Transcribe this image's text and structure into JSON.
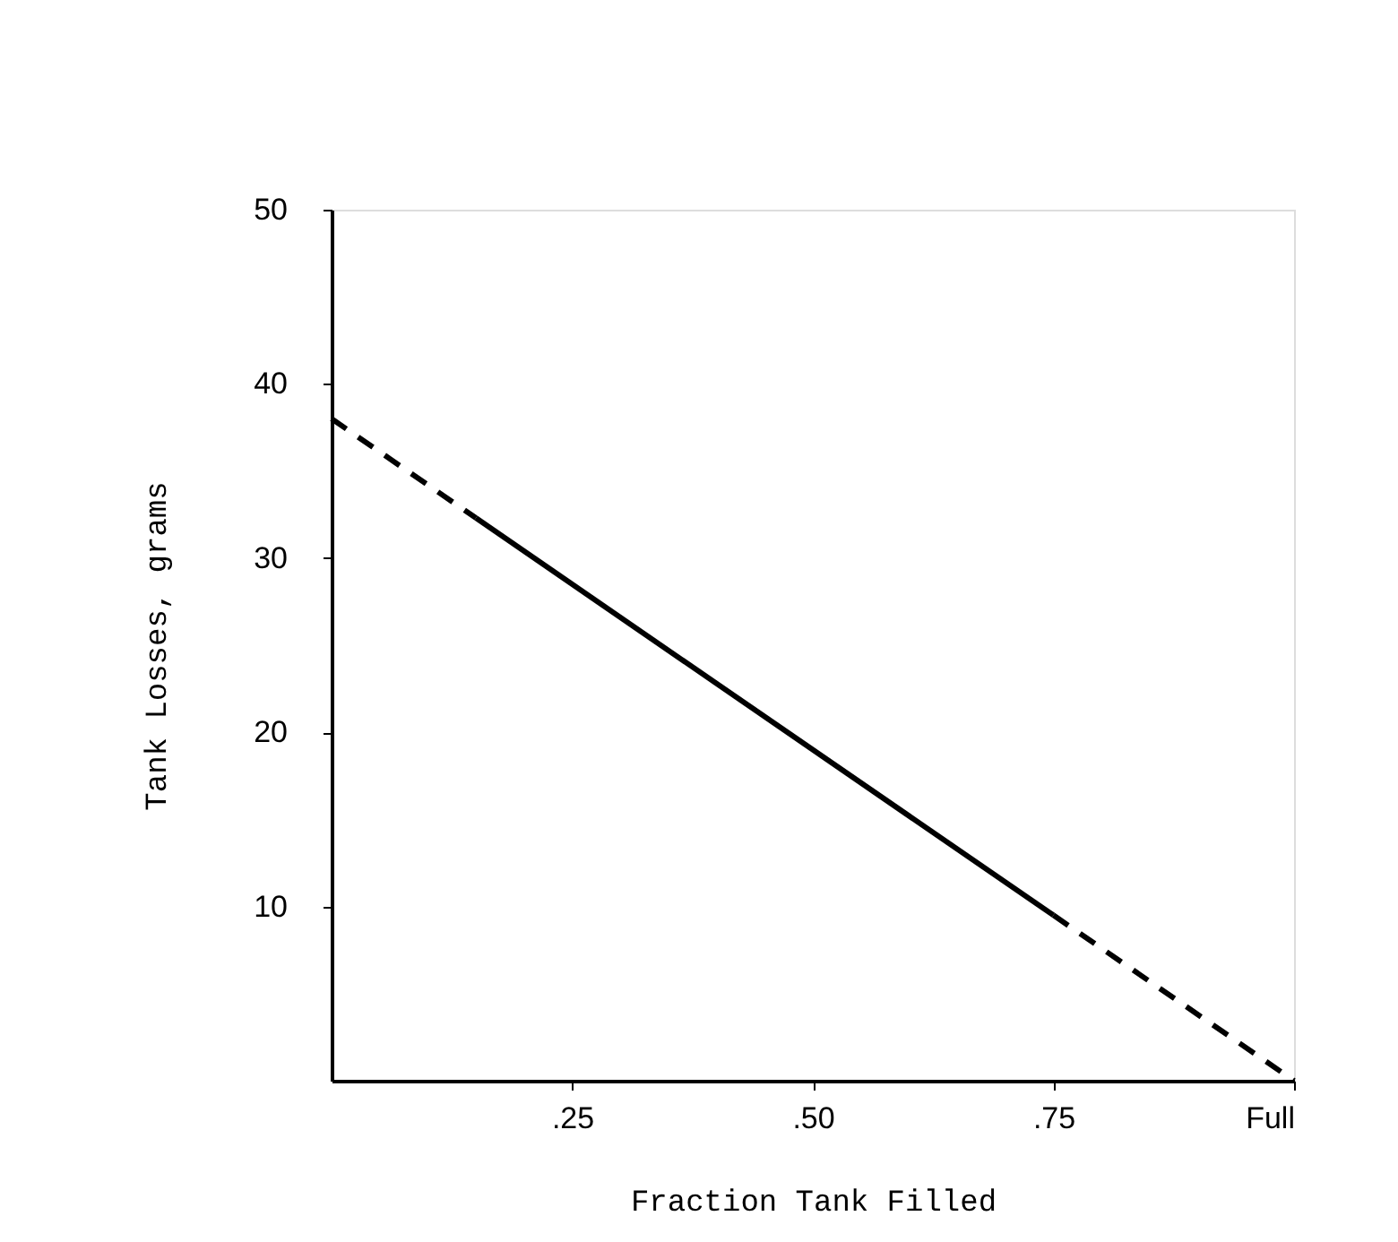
{
  "chart_data": {
    "type": "line",
    "xlabel": "Fraction Tank Filled",
    "ylabel": "Tank Losses, grams",
    "xlim": [
      0,
      1
    ],
    "ylim": [
      0,
      50
    ],
    "xticks": [
      {
        "value": 0.25,
        "label": ".25"
      },
      {
        "value": 0.5,
        "label": ".50"
      },
      {
        "value": 0.75,
        "label": ".75"
      },
      {
        "value": 1,
        "label": "Full"
      }
    ],
    "yticks": [
      10,
      20,
      30,
      40,
      50
    ],
    "grid": false,
    "marker": "none",
    "series": [
      {
        "color": "#000000",
        "line_style": "dashed",
        "x": [
          0,
          0.15
        ],
        "values": [
          38,
          32.3
        ]
      },
      {
        "color": "#000000",
        "line_style": "solid",
        "x": [
          0.15,
          0.75
        ],
        "values": [
          32.3,
          9.5
        ]
      },
      {
        "color": "#000000",
        "line_style": "dashed",
        "x": [
          0.75,
          1
        ],
        "values": [
          9.5,
          0
        ]
      }
    ]
  }
}
